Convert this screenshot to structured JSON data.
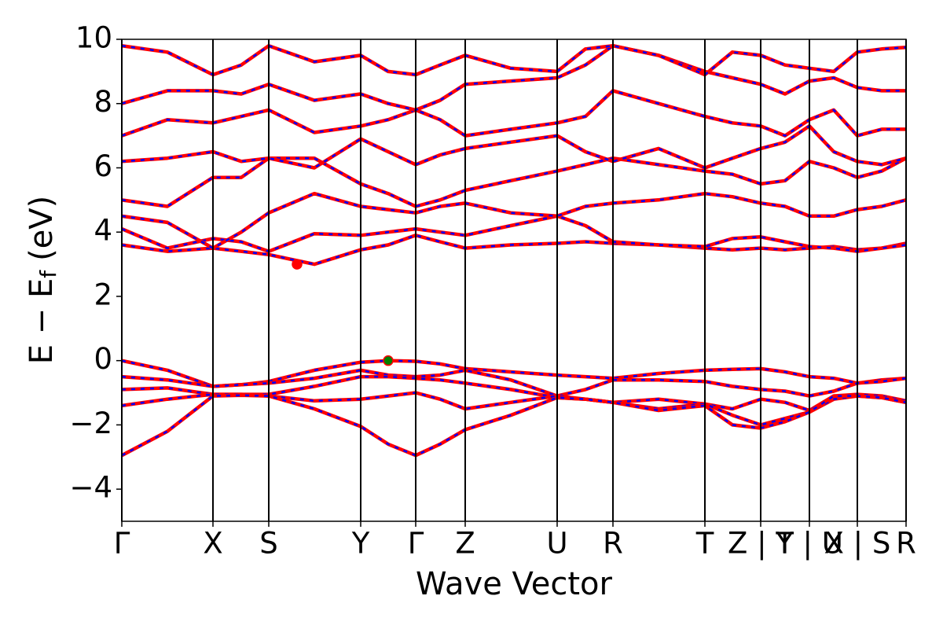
{
  "chart_data": {
    "type": "line",
    "xlabel": "Wave Vector",
    "ylabel": {
      "main": "E − E",
      "sub": "f",
      "unit": "(eV)"
    },
    "xlim": [
      0,
      0.998
    ],
    "ylim": [
      -5,
      10
    ],
    "yticks": [
      {
        "value": -4,
        "label": "−4"
      },
      {
        "value": -2,
        "label": "−2"
      },
      0,
      2,
      4,
      6,
      8,
      10
    ],
    "xticks": [
      {
        "value": 0,
        "label": "Γ"
      },
      {
        "value": 0.116,
        "label": "X"
      },
      {
        "value": 0.187,
        "label": "S"
      },
      {
        "value": 0.304,
        "label": "Y"
      },
      {
        "value": 0.374,
        "label": "Γ"
      },
      {
        "value": 0.437,
        "label": "Z"
      },
      {
        "value": 0.554,
        "label": "U"
      },
      {
        "value": 0.625,
        "label": "R"
      },
      {
        "value": 0.742,
        "label": "T"
      },
      {
        "value": 0.813,
        "label": "Z | T"
      },
      {
        "value": 0.875,
        "label": "Y | U"
      },
      {
        "value": 0.936,
        "label": "X | S"
      },
      {
        "value": 0.998,
        "label": "R"
      }
    ],
    "x": [
      0,
      0.058,
      0.116,
      0.152,
      0.187,
      0.245,
      0.304,
      0.339,
      0.374,
      0.405,
      0.437,
      0.495,
      0.554,
      0.59,
      0.625,
      0.683,
      0.742,
      0.777,
      0.813,
      0.844,
      0.875,
      0.906,
      0.936,
      0.967,
      0.998
    ],
    "overlay_color": "#0000ff",
    "series": [
      {
        "color": "#ff0000",
        "values": [
          0,
          -0.3,
          -0.8,
          -0.75,
          -0.65,
          -0.3,
          -0.05,
          0,
          -0.02,
          -0.1,
          -0.25,
          -0.35,
          -0.45,
          -0.5,
          -0.55,
          -0.4,
          -0.3,
          -0.27,
          -0.25,
          -0.35,
          -0.5,
          -0.55,
          -0.7,
          -0.6,
          -0.55
        ]
      },
      {
        "color": "#ff0000",
        "values": [
          -0.5,
          -0.6,
          -0.8,
          -0.75,
          -0.7,
          -0.55,
          -0.3,
          -0.45,
          -0.5,
          -0.45,
          -0.3,
          -0.6,
          -1.1,
          -0.9,
          -0.6,
          -0.6,
          -0.65,
          -0.8,
          -0.9,
          -0.95,
          -1.1,
          -0.95,
          -0.7,
          -0.65,
          -0.55
        ]
      },
      {
        "color": "#ff0000",
        "values": [
          -0.9,
          -0.85,
          -1.05,
          -1.05,
          -1.05,
          -0.8,
          -0.5,
          -0.5,
          -0.55,
          -0.6,
          -0.7,
          -0.9,
          -1.15,
          -1.2,
          -1.3,
          -1.2,
          -1.35,
          -1.5,
          -1.2,
          -1.3,
          -1.55,
          -1.1,
          -1.05,
          -1.1,
          -1.25
        ]
      },
      {
        "color": "#ff0000",
        "values": [
          -1.4,
          -1.2,
          -1.05,
          -1.05,
          -1.1,
          -1.25,
          -1.2,
          -1.1,
          -1.0,
          -1.2,
          -1.5,
          -1.3,
          -1.1,
          -1.2,
          -1.3,
          -1.5,
          -1.35,
          -1.7,
          -2.0,
          -1.8,
          -1.6,
          -1.2,
          -1.1,
          -1.15,
          -1.3
        ]
      },
      {
        "color": "#ff0000",
        "values": [
          -2.95,
          -2.2,
          -1.1,
          -1.08,
          -1.1,
          -1.5,
          -2.05,
          -2.6,
          -2.95,
          -2.6,
          -2.15,
          -1.7,
          -1.15,
          -1.2,
          -1.3,
          -1.55,
          -1.4,
          -2.0,
          -2.1,
          -1.9,
          -1.6,
          -1.1,
          -1.1,
          -1.15,
          -1.3
        ]
      },
      {
        "color": "#ff0000",
        "values": [
          3.6,
          3.4,
          3.5,
          3.4,
          3.3,
          3.0,
          3.45,
          3.6,
          3.9,
          3.7,
          3.5,
          3.6,
          3.65,
          3.7,
          3.65,
          3.6,
          3.5,
          3.45,
          3.5,
          3.45,
          3.5,
          3.55,
          3.45,
          3.5,
          3.65
        ]
      },
      {
        "color": "#ff0000",
        "values": [
          4.1,
          3.5,
          3.8,
          3.7,
          3.4,
          3.95,
          3.9,
          4.0,
          4.1,
          4.0,
          3.9,
          4.2,
          4.5,
          4.2,
          3.7,
          3.6,
          3.55,
          3.8,
          3.85,
          3.7,
          3.55,
          3.5,
          3.4,
          3.5,
          3.6
        ]
      },
      {
        "color": "#ff0000",
        "values": [
          4.5,
          4.3,
          3.5,
          4.0,
          4.6,
          5.2,
          4.8,
          4.7,
          4.6,
          4.8,
          4.9,
          4.6,
          4.5,
          4.8,
          4.9,
          5.0,
          5.2,
          5.1,
          4.9,
          4.8,
          4.5,
          4.5,
          4.7,
          4.8,
          5.0
        ]
      },
      {
        "color": "#ff0000",
        "values": [
          5.0,
          4.8,
          5.7,
          5.7,
          6.3,
          6.3,
          5.5,
          5.2,
          4.8,
          5.0,
          5.3,
          5.6,
          5.9,
          6.1,
          6.3,
          6.1,
          5.9,
          5.8,
          5.5,
          5.6,
          6.2,
          6.0,
          5.7,
          5.9,
          6.3
        ]
      },
      {
        "color": "#ff0000",
        "values": [
          6.2,
          6.3,
          6.5,
          6.2,
          6.3,
          6.0,
          6.9,
          6.5,
          6.1,
          6.4,
          6.6,
          6.8,
          7.0,
          6.5,
          6.2,
          6.6,
          6.0,
          6.3,
          6.6,
          6.8,
          7.3,
          6.5,
          6.2,
          6.1,
          6.3
        ]
      },
      {
        "color": "#ff0000",
        "values": [
          7.0,
          7.5,
          7.4,
          7.6,
          7.8,
          7.1,
          7.3,
          7.5,
          7.8,
          7.5,
          7.0,
          7.2,
          7.4,
          7.6,
          8.4,
          8.0,
          7.6,
          7.4,
          7.3,
          7.0,
          7.5,
          7.8,
          7.0,
          7.2,
          7.2
        ]
      },
      {
        "color": "#ff0000",
        "values": [
          8.0,
          8.4,
          8.4,
          8.3,
          8.6,
          8.1,
          8.3,
          8.0,
          7.8,
          8.1,
          8.6,
          8.7,
          8.8,
          9.2,
          9.8,
          9.5,
          9.0,
          8.8,
          8.6,
          8.3,
          8.7,
          8.8,
          8.5,
          8.4,
          8.4
        ]
      },
      {
        "color": "#ff0000",
        "values": [
          9.8,
          9.6,
          8.9,
          9.2,
          9.8,
          9.3,
          9.5,
          9.0,
          8.9,
          9.2,
          9.5,
          9.1,
          9.0,
          9.7,
          9.8,
          9.5,
          8.9,
          9.6,
          9.5,
          9.2,
          9.1,
          9.0,
          9.6,
          9.7,
          9.75
        ]
      }
    ],
    "markers": [
      {
        "x": 0.223,
        "y": 3.0,
        "color": "#ff0000",
        "edge": "#ff0000"
      },
      {
        "x": 0.339,
        "y": 0,
        "color": "#008000",
        "edge": "#ff0000"
      }
    ]
  }
}
